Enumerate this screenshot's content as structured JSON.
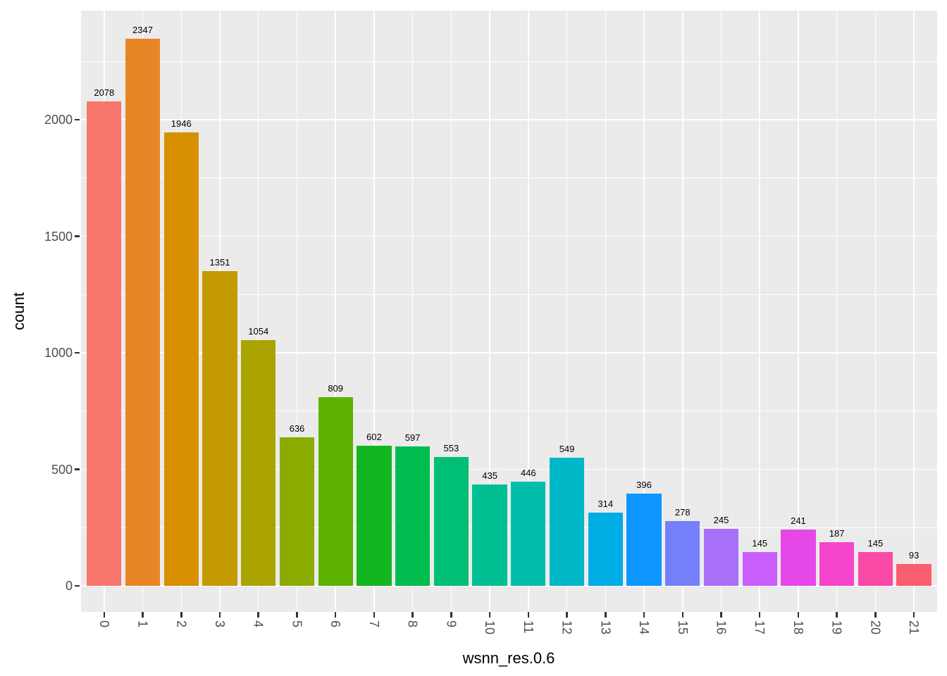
{
  "chart_data": {
    "type": "bar",
    "title": "",
    "xlabel": "wsnn_res.0.6",
    "ylabel": "count",
    "categories": [
      "0",
      "1",
      "2",
      "3",
      "4",
      "5",
      "6",
      "7",
      "8",
      "9",
      "10",
      "11",
      "12",
      "13",
      "14",
      "15",
      "16",
      "17",
      "18",
      "19",
      "20",
      "21"
    ],
    "values": [
      2078,
      2347,
      1946,
      1351,
      1054,
      636,
      809,
      602,
      597,
      553,
      435,
      446,
      549,
      314,
      396,
      278,
      245,
      145,
      241,
      187,
      145,
      93
    ],
    "bar_labels": [
      "2078",
      "2347",
      "1946",
      "1351",
      "1054",
      "636",
      "809",
      "602",
      "597",
      "553",
      "435",
      "446",
      "549",
      "314",
      "396",
      "278",
      "245",
      "145",
      "241",
      "187",
      "145",
      "93"
    ],
    "bar_colors": [
      "#F8766D",
      "#E88526",
      "#D89000",
      "#C39B00",
      "#ABA300",
      "#8CAB00",
      "#5EB300",
      "#12B71F",
      "#00BB4E",
      "#00BE74",
      "#00BF92",
      "#00BDAC",
      "#00B7C8",
      "#00ACE4",
      "#0D96FF",
      "#7380F9",
      "#A970FA",
      "#CA5EFC",
      "#E648E8",
      "#F444CC",
      "#FB49A6",
      "#FA5E6F"
    ],
    "y_ticks": [
      0,
      500,
      1000,
      1500,
      2000
    ],
    "y_minor_ticks": [
      250,
      750,
      1250,
      1750,
      2250
    ],
    "ylim": [
      -123,
      2464
    ],
    "grid": "major-and-minor",
    "legend_position": "none"
  },
  "style": {
    "panel_bg": "#EBEBEB",
    "grid_color": "#FFFFFF",
    "tick_mark_color": "#333333",
    "axis_text_color": "#4D4D4D",
    "axis_title_color": "#000000",
    "bar_value_label_color": "#000000",
    "page_bg": "#FFFFFF"
  }
}
